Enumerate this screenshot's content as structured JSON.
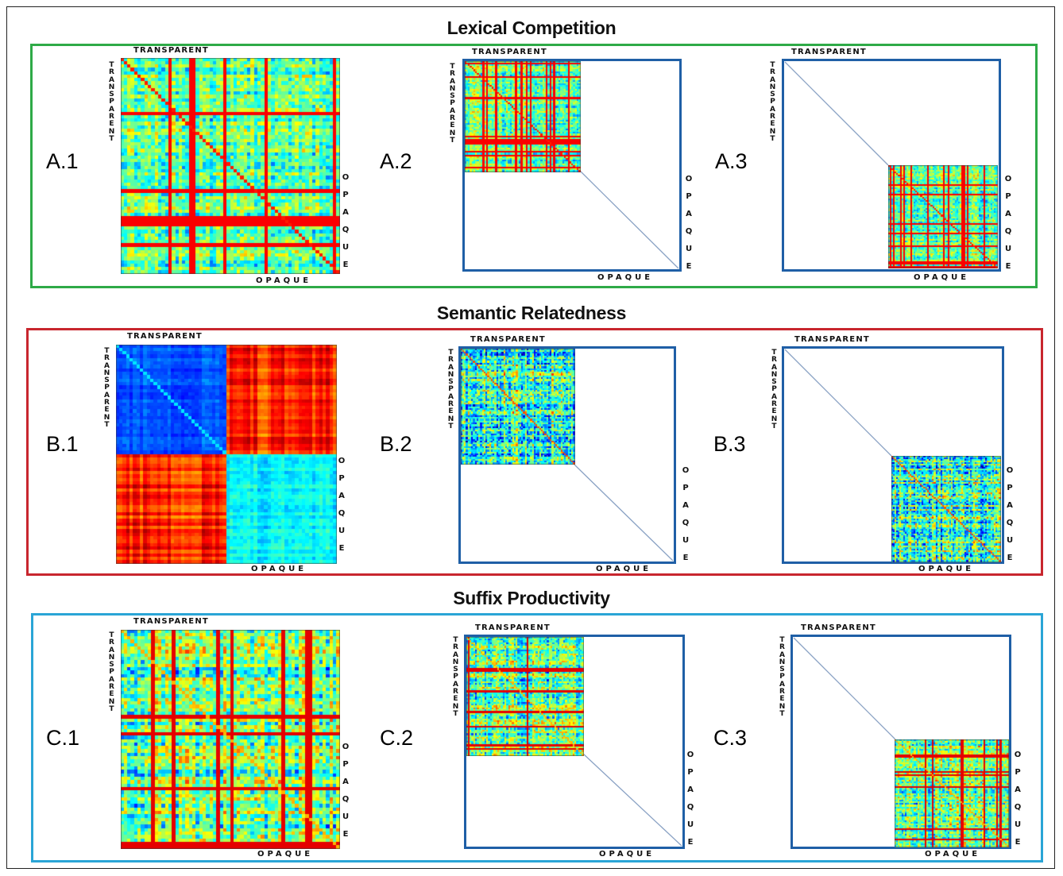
{
  "figure": {
    "sections": [
      {
        "title": "Lexical Competition",
        "border_color": "#2eaa47",
        "panels": [
          {
            "label": "A.1",
            "top_label": "TRANSPARENT",
            "side_top": "TRANSPARENT",
            "bottom_label": "OPAQUE",
            "side_bottom": "OPAQUE"
          },
          {
            "label": "A.2",
            "top_label": "TRANSPARENT",
            "side_top": "TRANSPARENT",
            "bottom_label": "OPAQUE",
            "side_bottom": "OPAQUE"
          },
          {
            "label": "A.3",
            "top_label": "TRANSPARENT",
            "side_top": "TRANSPARENT",
            "bottom_label": "OPAQUE",
            "side_bottom": "OPAQUE"
          }
        ]
      },
      {
        "title": "Semantic Relatedness",
        "border_color": "#c8262e",
        "panels": [
          {
            "label": "B.1",
            "top_label": "TRANSPARENT",
            "side_top": "TRANSPARENT",
            "bottom_label": "OPAQUE",
            "side_bottom": "OPAQUE"
          },
          {
            "label": "B.2",
            "top_label": "TRANSPARENT",
            "side_top": "TRANSPARENT",
            "bottom_label": "OPAQUE",
            "side_bottom": "OPAQUE"
          },
          {
            "label": "B.3",
            "top_label": "TRANSPARENT",
            "side_top": "TRANSPARENT",
            "bottom_label": "OPAQUE",
            "side_bottom": "OPAQUE"
          }
        ]
      },
      {
        "title": "Suffix Productivity",
        "border_color": "#2aa5d6",
        "panels": [
          {
            "label": "C.1",
            "top_label": "TRANSPARENT",
            "side_top": "TRANSPARENT",
            "bottom_label": "OPAQUE",
            "side_bottom": "OPAQUE"
          },
          {
            "label": "C.2",
            "top_label": "TRANSPARENT",
            "side_top": "TRANSPARENT",
            "bottom_label": "OPAQUE",
            "side_bottom": "OPAQUE"
          },
          {
            "label": "C.3",
            "top_label": "TRANSPARENT",
            "side_top": "TRANSPARENT",
            "bottom_label": "OPAQUE",
            "side_bottom": "OPAQUE"
          }
        ]
      }
    ],
    "colors": {
      "model_frame": "#1f5fa6",
      "diagonal_line": "#8aa2c4",
      "colormap": "jet"
    }
  }
}
